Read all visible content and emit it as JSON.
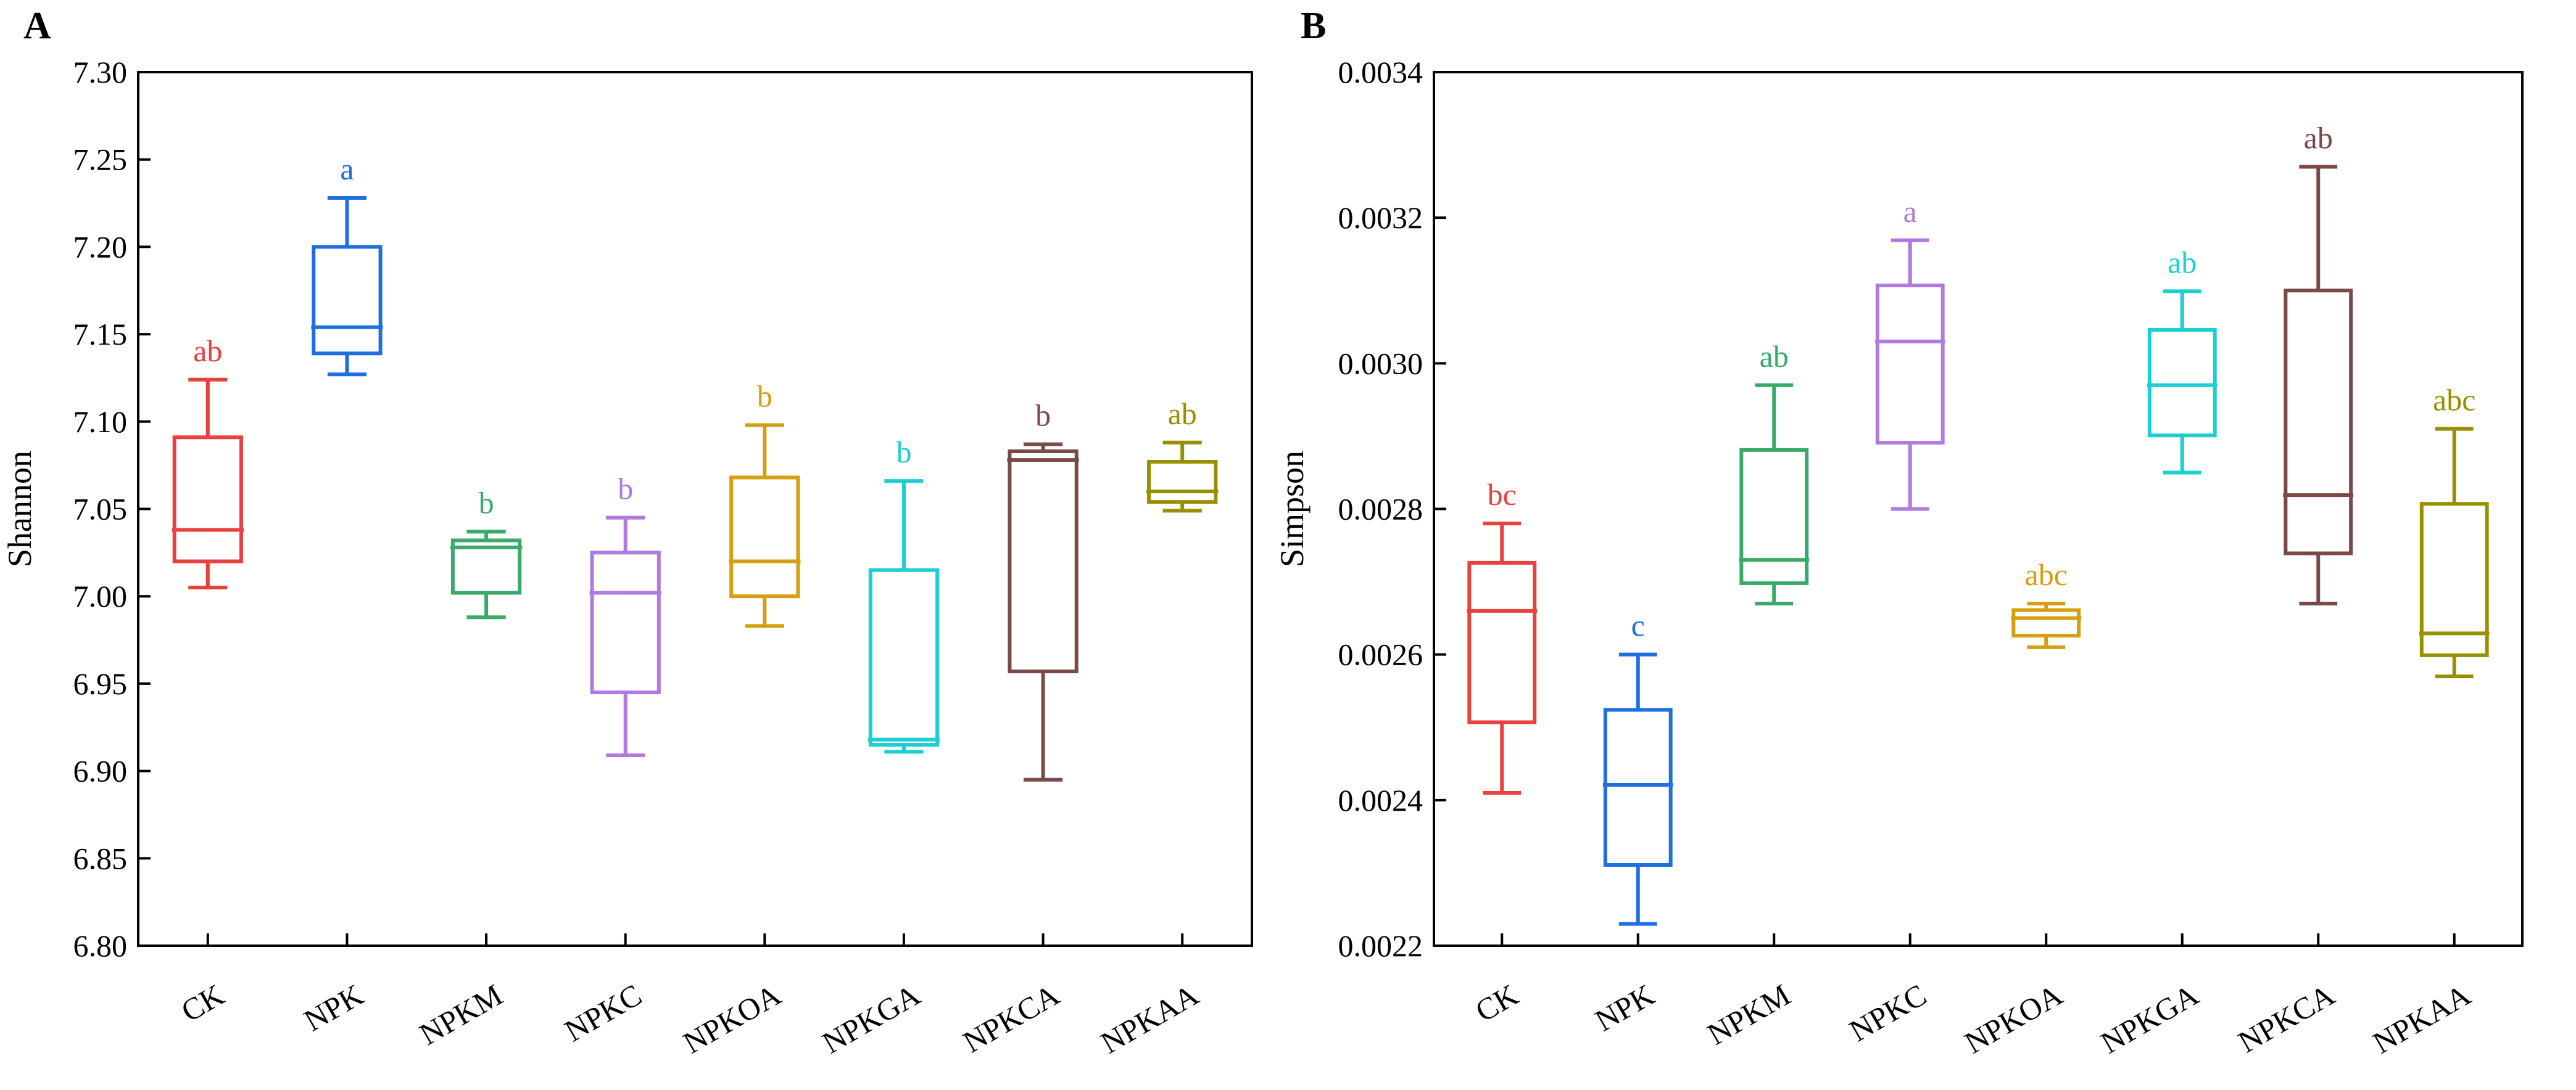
{
  "chart_data": [
    {
      "type": "box",
      "panel_label": "A",
      "ylabel": "Shannon",
      "ylim": [
        6.8,
        7.3
      ],
      "yticks": [
        "6.80",
        "6.85",
        "6.90",
        "6.95",
        "7.00",
        "7.05",
        "7.10",
        "7.15",
        "7.20",
        "7.25",
        "7.30"
      ],
      "grid": false,
      "categories": [
        "CK",
        "NPK",
        "NPKM",
        "NPKC",
        "NPKOA",
        "NPKGA",
        "NPKCA",
        "NPKAA"
      ],
      "colors": [
        "#e8413f",
        "#1f6fe0",
        "#3aaa6a",
        "#b07be0",
        "#d4a010",
        "#1ccfd0",
        "#7a4a4a",
        "#999000"
      ],
      "boxes": [
        {
          "min": 7.005,
          "q1": 7.02,
          "median": 7.038,
          "q3": 7.091,
          "max": 7.124,
          "letter": "ab"
        },
        {
          "min": 7.127,
          "q1": 7.139,
          "median": 7.154,
          "q3": 7.2,
          "max": 7.228,
          "letter": "a"
        },
        {
          "min": 6.988,
          "q1": 7.002,
          "median": 7.028,
          "q3": 7.032,
          "max": 7.037,
          "letter": "b"
        },
        {
          "min": 6.909,
          "q1": 6.945,
          "median": 7.002,
          "q3": 7.025,
          "max": 7.045,
          "letter": "b"
        },
        {
          "min": 6.983,
          "q1": 7.0,
          "median": 7.02,
          "q3": 7.068,
          "max": 7.098,
          "letter": "b"
        },
        {
          "min": 6.911,
          "q1": 6.915,
          "median": 6.918,
          "q3": 7.015,
          "max": 7.066,
          "letter": "b"
        },
        {
          "min": 6.895,
          "q1": 6.957,
          "median": 7.078,
          "q3": 7.083,
          "max": 7.087,
          "letter": "b"
        },
        {
          "min": 7.049,
          "q1": 7.054,
          "median": 7.06,
          "q3": 7.077,
          "max": 7.088,
          "letter": "ab"
        }
      ]
    },
    {
      "type": "box",
      "panel_label": "B",
      "ylabel": "Simpson",
      "ylim": [
        0.0022,
        0.0034
      ],
      "yticks": [
        "0.0022",
        "0.0024",
        "0.0026",
        "0.0028",
        "0.0030",
        "0.0032",
        "0.0034"
      ],
      "grid": false,
      "categories": [
        "CK",
        "NPK",
        "NPKM",
        "NPKC",
        "NPKOA",
        "NPKGA",
        "NPKCA",
        "NPKAA"
      ],
      "colors": [
        "#e8413f",
        "#1f6fe0",
        "#3aaa6a",
        "#b07be0",
        "#d4a010",
        "#1ccfd0",
        "#7a4a4a",
        "#999000"
      ],
      "boxes": [
        {
          "min": 0.00241,
          "q1": 0.002507,
          "median": 0.00266,
          "q3": 0.002726,
          "max": 0.00278,
          "letter": "bc"
        },
        {
          "min": 0.00223,
          "q1": 0.002311,
          "median": 0.002421,
          "q3": 0.002524,
          "max": 0.0026,
          "letter": "c"
        },
        {
          "min": 0.00267,
          "q1": 0.002698,
          "median": 0.00273,
          "q3": 0.002881,
          "max": 0.00297,
          "letter": "ab"
        },
        {
          "min": 0.0028,
          "q1": 0.002891,
          "median": 0.00303,
          "q3": 0.003107,
          "max": 0.003169,
          "letter": "a"
        },
        {
          "min": 0.00261,
          "q1": 0.002626,
          "median": 0.00265,
          "q3": 0.002661,
          "max": 0.00267,
          "letter": "abc"
        },
        {
          "min": 0.00285,
          "q1": 0.002901,
          "median": 0.00297,
          "q3": 0.003046,
          "max": 0.003099,
          "letter": "ab"
        },
        {
          "min": 0.00267,
          "q1": 0.002739,
          "median": 0.002819,
          "q3": 0.0031,
          "max": 0.00327,
          "letter": "ab"
        },
        {
          "min": 0.00257,
          "q1": 0.002599,
          "median": 0.002629,
          "q3": 0.002807,
          "max": 0.00291,
          "letter": "abc"
        }
      ]
    }
  ]
}
